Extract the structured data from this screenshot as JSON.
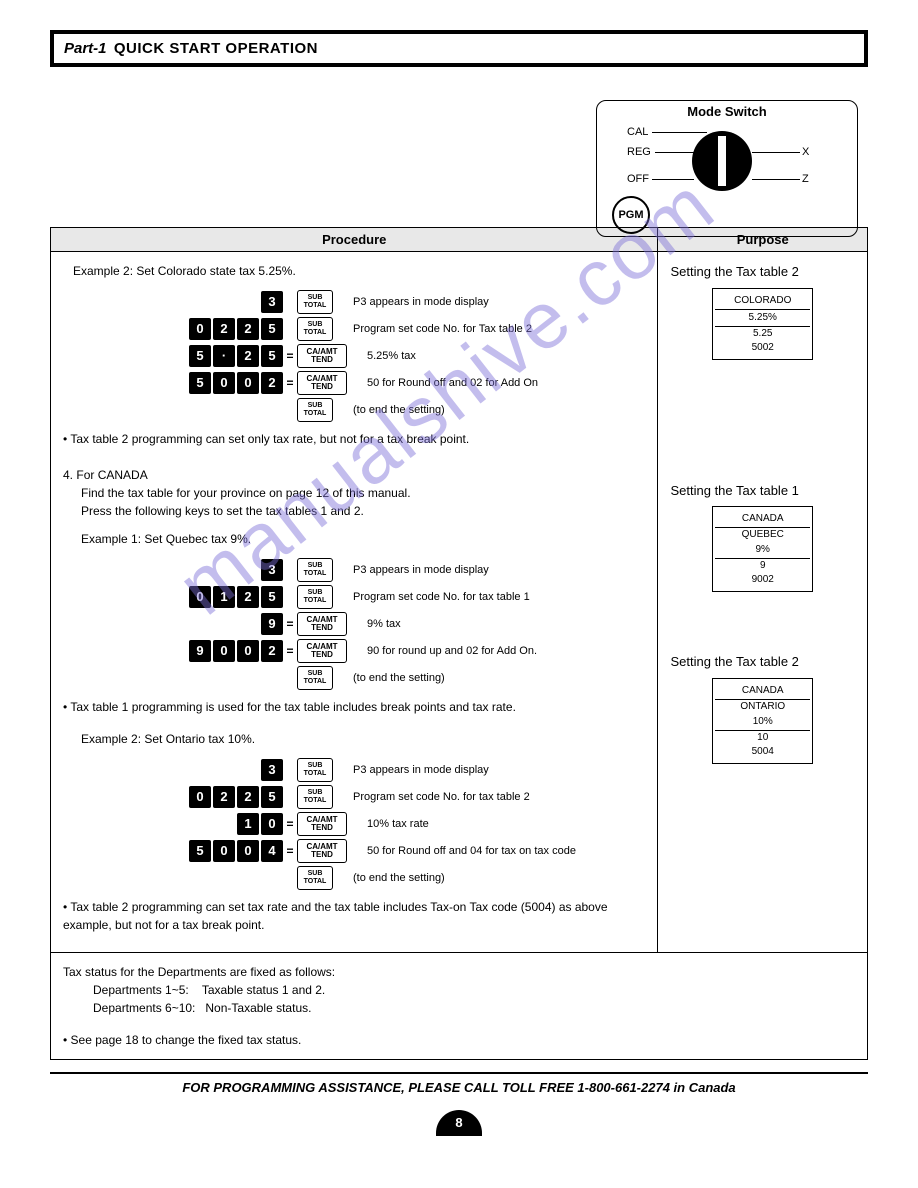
{
  "header": {
    "part": "Part-1",
    "title": "QUICK START OPERATION"
  },
  "mode_switch": {
    "title": "Mode Switch",
    "labels": {
      "cal": "CAL",
      "reg": "REG",
      "off": "OFF",
      "x": "X",
      "z": "Z",
      "pgm": "PGM"
    }
  },
  "table_headers": {
    "procedure": "Procedure",
    "purpose": "Purpose"
  },
  "example2_colorado": {
    "title": "Example 2:  Set Colorado state tax 5.25%.",
    "rows": [
      {
        "keys": [
          "3"
        ],
        "suffix": "SUB TOTAL",
        "desc": "P3 appears in mode display"
      },
      {
        "keys": [
          "0",
          "2",
          "2",
          "5"
        ],
        "suffix": "SUB TOTAL",
        "desc": "Program set code No. for Tax table 2"
      },
      {
        "keys": [
          "5",
          "·",
          "2",
          "5"
        ],
        "eq": "=",
        "suffix": "CA/AMT TEND",
        "desc": "5.25% tax"
      },
      {
        "keys": [
          "5",
          "0",
          "0",
          "2"
        ],
        "eq": "=",
        "suffix": "CA/AMT TEND",
        "desc": "50 for Round off and 02 for Add On"
      },
      {
        "keys": [],
        "suffix": "SUB TOTAL",
        "desc": "(to end the setting)"
      }
    ],
    "note": "• Tax table 2 programming can set only tax rate, but not for a tax break point.",
    "purpose_title": "Setting the Tax table 2",
    "receipt": {
      "h": "COLORADO",
      "l1": "5.25%",
      "l2": "5.25",
      "l3": "5002"
    }
  },
  "canada_intro": {
    "num": "4.",
    "title": "For CANADA",
    "l1": "Find the tax table for your province on page 12 of this manual.",
    "l2": "Press the following keys to set the tax tables 1 and 2."
  },
  "example1_quebec": {
    "title": "Example 1:  Set Quebec tax 9%.",
    "rows": [
      {
        "keys": [
          "3"
        ],
        "suffix": "SUB TOTAL",
        "desc": "P3 appears in mode display"
      },
      {
        "keys": [
          "0",
          "1",
          "2",
          "5"
        ],
        "suffix": "SUB TOTAL",
        "desc": "Program set code No. for tax table 1"
      },
      {
        "keys": [
          "9"
        ],
        "eq": "=",
        "suffix": "CA/AMT TEND",
        "desc": "9% tax"
      },
      {
        "keys": [
          "9",
          "0",
          "0",
          "2"
        ],
        "eq": "=",
        "suffix": "CA/AMT TEND",
        "desc": "90 for round up and 02 for Add On."
      },
      {
        "keys": [],
        "suffix": "SUB TOTAL",
        "desc": "(to end the setting)"
      }
    ],
    "note": "• Tax table 1 programming is used for the tax table includes break points and tax rate.",
    "purpose_title": "Setting the Tax table 1",
    "receipt": {
      "h": "CANADA",
      "l1": "QUEBEC",
      "l2": "9%",
      "l3": "9",
      "l4": "9002"
    }
  },
  "example2_ontario": {
    "title": "Example 2:  Set Ontario tax 10%.",
    "rows": [
      {
        "keys": [
          "3"
        ],
        "suffix": "SUB TOTAL",
        "desc": "P3 appears in mode display"
      },
      {
        "keys": [
          "0",
          "2",
          "2",
          "5"
        ],
        "suffix": "SUB TOTAL",
        "desc": "Program set code No. for tax table 2"
      },
      {
        "keys": [
          "1",
          "0"
        ],
        "eq": "=",
        "suffix": "CA/AMT TEND",
        "desc": "10% tax rate"
      },
      {
        "keys": [
          "5",
          "0",
          "0",
          "4"
        ],
        "eq": "=",
        "suffix": "CA/AMT TEND",
        "desc": "50 for Round off and 04 for tax on tax code"
      },
      {
        "keys": [],
        "suffix": "SUB TOTAL",
        "desc": "(to end the setting)"
      }
    ],
    "note": "• Tax table 2 programming can set tax rate and the tax table includes Tax-on Tax code (5004) as above example, but not for a tax break point.",
    "purpose_title": "Setting the Tax table 2",
    "receipt": {
      "h": "CANADA",
      "l1": "ONTARIO",
      "l2": "10%",
      "l3": "10",
      "l4": "5004"
    }
  },
  "tax_status": {
    "l1": "Tax status for the Departments are fixed as follows:",
    "l2": "Departments 1~5:    Taxable status 1 and 2.",
    "l3": "Departments 6~10:   Non-Taxable status.",
    "l4": "• See page 18 to change the fixed  tax status."
  },
  "footer": "FOR PROGRAMMING ASSISTANCE, PLEASE CALL TOLL FREE 1-800-661-2274 in Canada",
  "page_number": "8",
  "watermark": "manualshive.com"
}
